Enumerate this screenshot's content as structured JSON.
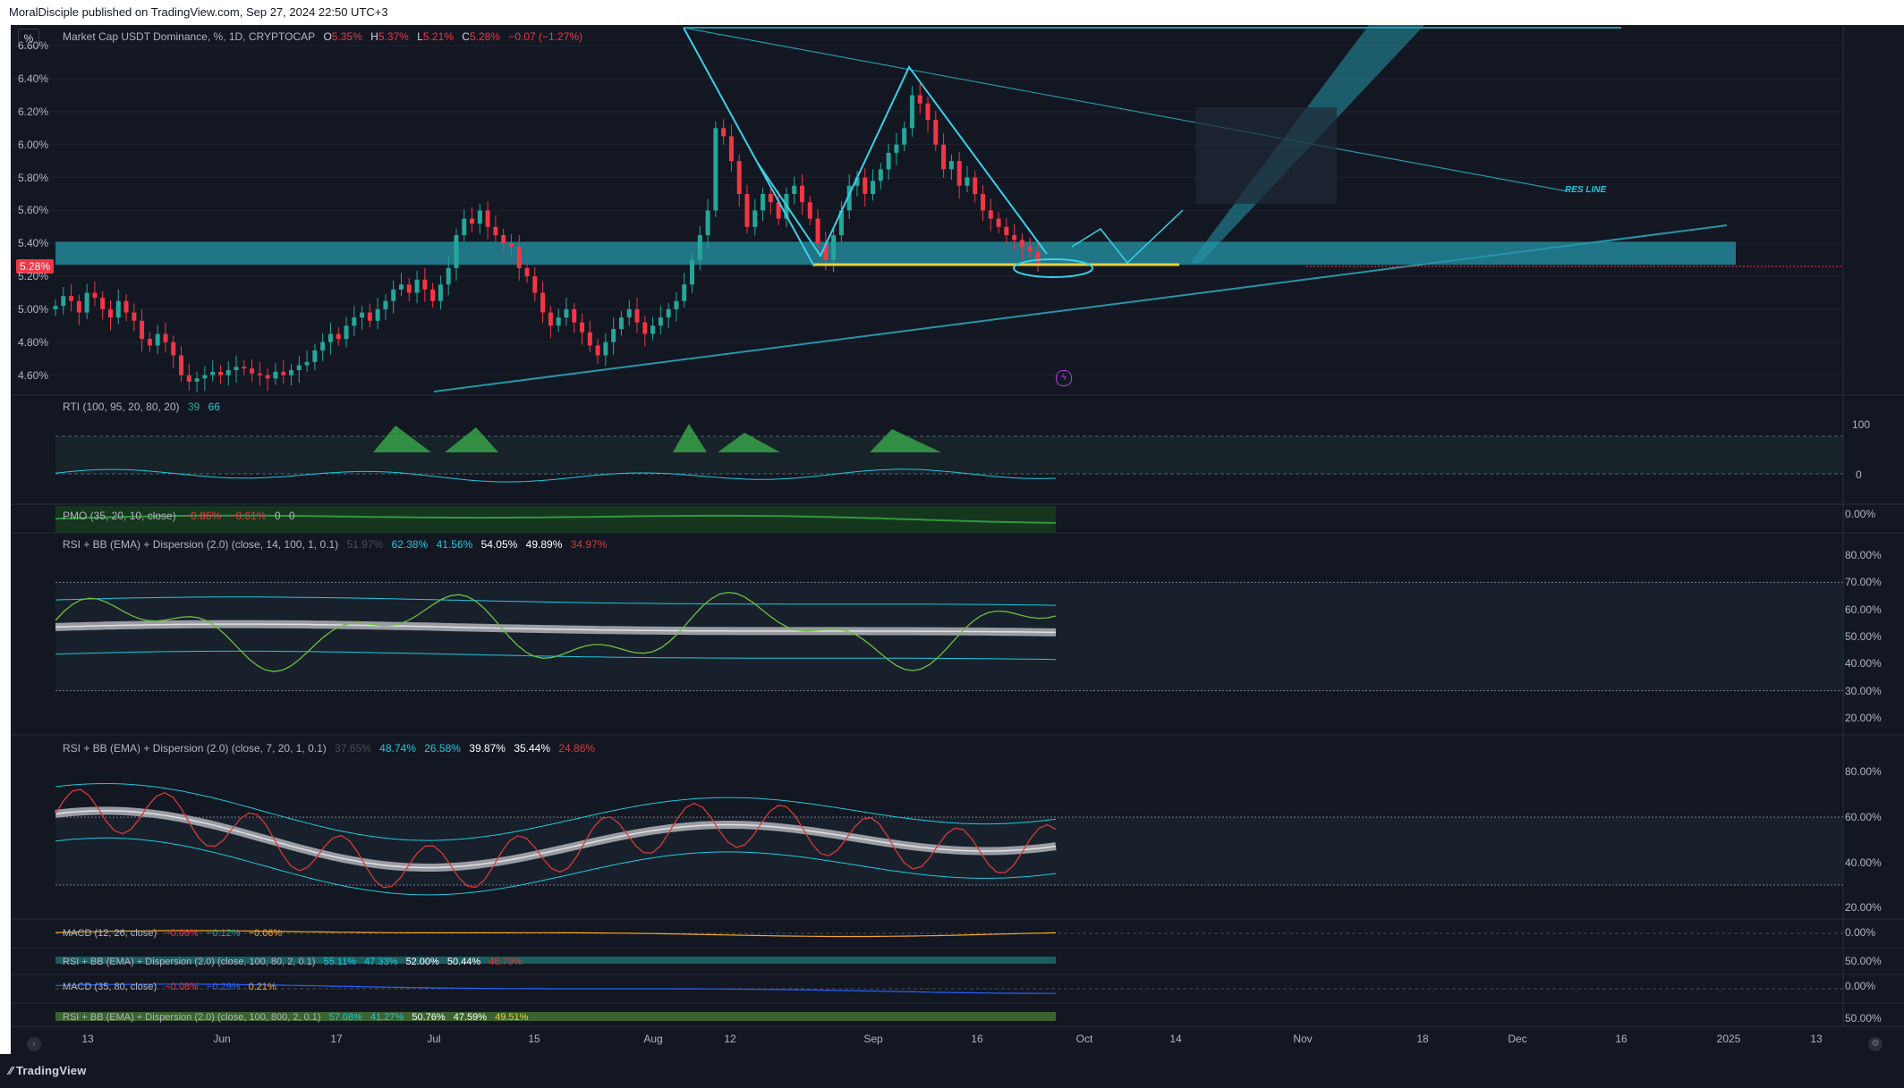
{
  "header": {
    "publisher_line": "MoralDisciple published on TradingView.com, Sep 27, 2024 22:50 UTC+3"
  },
  "footer": {
    "brand": "TradingView"
  },
  "main_pane": {
    "scale_button": "%",
    "symbol": "Market Cap USDT Dominance, %, 1D, CRYPTOCAP",
    "ohlc": {
      "open_label": "O",
      "open": "5.35%",
      "high_label": "H",
      "high": "5.37%",
      "low_label": "L",
      "low": "5.21%",
      "close_label": "C",
      "close": "5.28%",
      "change": "−0.07 (−1.27%)"
    },
    "last_price_tag": "5.28%",
    "price_axis": [
      "6.60%",
      "6.40%",
      "6.20%",
      "6.00%",
      "5.80%",
      "5.60%",
      "5.40%",
      "5.20%",
      "5.00%",
      "4.80%",
      "4.60%"
    ],
    "annotation_res_line": "RES LINE"
  },
  "indicators": {
    "rti": {
      "title": "RTI (100, 95, 20, 80, 20)",
      "v1": "39",
      "v2": "66",
      "axis": [
        "100",
        "0"
      ]
    },
    "pmo": {
      "title": "PMO (35, 20, 10, close)",
      "v1": "−0.86%",
      "v2": "−0.61%",
      "v3": "0",
      "v4": "0",
      "axis": [
        "0.00%"
      ]
    },
    "rsi1": {
      "title": "RSI + BB (EMA) + Dispersion (2.0) (close, 14, 100, 1, 0.1)",
      "v0": "51.97%",
      "v1": "62.38%",
      "v2": "41.56%",
      "v3": "54.05%",
      "v4": "49.89%",
      "v5": "34.97%",
      "axis": [
        "80.00%",
        "70.00%",
        "60.00%",
        "50.00%",
        "40.00%",
        "30.00%",
        "20.00%"
      ]
    },
    "rsi2": {
      "title": "RSI + BB (EMA) + Dispersion (2.0) (close, 7, 20, 1, 0.1)",
      "v0": "37.65%",
      "v1": "48.74%",
      "v2": "26.58%",
      "v3": "39.87%",
      "v4": "35.44%",
      "v5": "24.86%",
      "axis": [
        "80.00%",
        "60.00%",
        "40.00%",
        "20.00%"
      ]
    },
    "macd1": {
      "title": "MACD (12, 26, close)",
      "v1": "−0.06%",
      "v2": "−0.12%",
      "v3": "−0.06%",
      "axis": [
        "0.00%"
      ]
    },
    "rsi3": {
      "title": "RSI + BB (EMA) + Dispersion (2.0) (close, 100, 80, 2, 0.1)",
      "v1": "55.11%",
      "v2": "47.33%",
      "v3": "52.00%",
      "v4": "50.44%",
      "v5": "48.79%",
      "axis": [
        "50.00%"
      ]
    },
    "macd2": {
      "title": "MACD (35, 80, close)",
      "v1": "−0.08%",
      "v2": "−0.29%",
      "v3": "0.21%",
      "axis": [
        "0.00%"
      ]
    },
    "rsi4": {
      "title": "RSI + BB (EMA) + Dispersion (2.0) (close, 100, 800, 2, 0.1)",
      "v1": "57.08%",
      "v2": "41.27%",
      "v3": "50.76%",
      "v4": "47.59%",
      "v5": "49.51%",
      "axis": [
        "50.00%"
      ]
    }
  },
  "time_axis": [
    "13",
    "Jun",
    "17",
    "Jul",
    "15",
    "Aug",
    "12",
    "Sep",
    "16",
    "Oct",
    "14",
    "Nov",
    "18",
    "Dec",
    "16",
    "2025",
    "13"
  ],
  "colors": {
    "background": "#131722",
    "up": "#26a69a",
    "down": "#f23645",
    "zone": "#2596a8",
    "pattern": "#3ad0e8",
    "support": "#e6d23a",
    "rsi_up": "#6fbf40",
    "rsi_down": "#d23c3c"
  },
  "chart_data": {
    "type": "candlestick",
    "title": "Market Cap USDT Dominance, %, 1D, CRYPTOCAP",
    "ylim": [
      4.5,
      6.65
    ],
    "xlabel": "",
    "ylabel": "",
    "x_ticks": [
      "13",
      "Jun",
      "17",
      "Jul",
      "15",
      "Aug",
      "12",
      "Sep",
      "16",
      "Oct",
      "14",
      "Nov",
      "18",
      "Dec",
      "16",
      "2025",
      "13"
    ],
    "close": [
      5.02,
      5.08,
      5.05,
      4.98,
      5.1,
      5.07,
      5.0,
      4.95,
      5.05,
      4.98,
      4.93,
      4.82,
      4.78,
      4.85,
      4.8,
      4.72,
      4.6,
      4.56,
      4.58,
      4.6,
      4.62,
      4.6,
      4.63,
      4.65,
      4.64,
      4.61,
      4.6,
      4.58,
      4.62,
      4.6,
      4.63,
      4.66,
      4.68,
      4.75,
      4.8,
      4.85,
      4.82,
      4.9,
      4.95,
      4.98,
      4.93,
      5.0,
      5.05,
      5.12,
      5.15,
      5.1,
      5.18,
      5.12,
      5.05,
      5.15,
      5.25,
      5.45,
      5.55,
      5.52,
      5.6,
      5.5,
      5.45,
      5.4,
      5.38,
      5.25,
      5.2,
      5.1,
      4.98,
      4.9,
      4.95,
      5.0,
      4.92,
      4.86,
      4.78,
      4.72,
      4.8,
      4.88,
      4.95,
      5.0,
      4.92,
      4.85,
      4.9,
      4.95,
      5.0,
      5.05,
      5.15,
      5.3,
      5.45,
      5.6,
      6.1,
      6.05,
      5.9,
      5.7,
      5.5,
      5.6,
      5.7,
      5.65,
      5.55,
      5.7,
      5.75,
      5.65,
      5.55,
      5.4,
      5.3,
      5.45,
      5.6,
      5.75,
      5.8,
      5.7,
      5.78,
      5.85,
      5.95,
      6.0,
      6.1,
      6.3,
      6.25,
      6.15,
      6.0,
      5.85,
      5.9,
      5.75,
      5.8,
      5.7,
      5.6,
      5.55,
      5.5,
      5.45,
      5.42,
      5.38,
      5.35,
      5.28
    ],
    "annotations": [
      {
        "type": "zone",
        "price_from": 5.27,
        "price_to": 5.41
      },
      {
        "type": "support",
        "price": 5.27
      },
      {
        "type": "label",
        "text": "RES LINE"
      }
    ]
  }
}
